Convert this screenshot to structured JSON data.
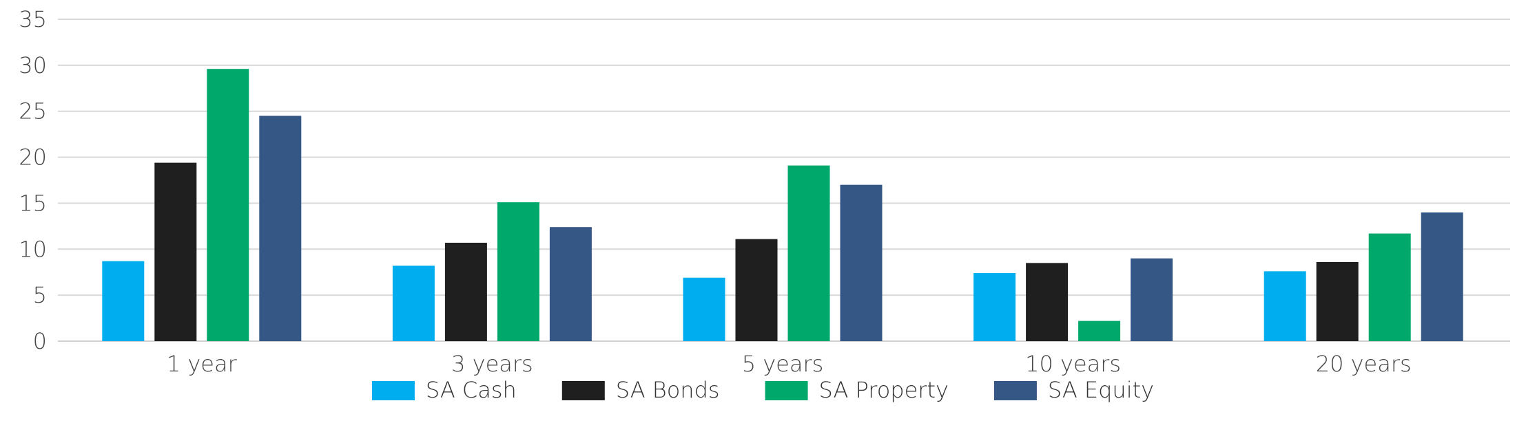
{
  "chart_data": {
    "type": "bar",
    "categories": [
      "1 year",
      "3 years",
      "5 years",
      "10 years",
      "20 years"
    ],
    "series": [
      {
        "name": "SA Cash",
        "color": "#00AEEF",
        "values": [
          8.7,
          8.2,
          6.9,
          7.4,
          7.6
        ]
      },
      {
        "name": "SA Bonds",
        "color": "#1F1F1F",
        "values": [
          19.4,
          10.7,
          11.1,
          8.5,
          8.6
        ]
      },
      {
        "name": "SA Property",
        "color": "#00A86B",
        "values": [
          29.6,
          15.1,
          19.1,
          2.2,
          11.7
        ]
      },
      {
        "name": "SA Equity",
        "color": "#355785",
        "values": [
          24.5,
          12.4,
          17.0,
          9.0,
          14.0
        ]
      }
    ],
    "ylim": [
      0,
      35
    ],
    "yticks": [
      0,
      5,
      10,
      15,
      20,
      25,
      30,
      35
    ],
    "grid": true,
    "legend_position": "bottom"
  }
}
